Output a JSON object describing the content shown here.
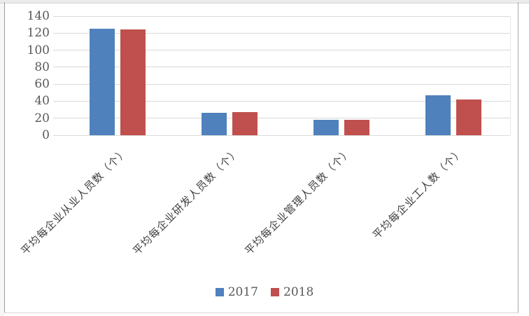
{
  "chart_data": {
    "type": "bar",
    "title": "",
    "categories": [
      "平均每企业从业人员数（个）",
      "平均每企业研发人员数（个）",
      "平均每企业管理人员数（个）",
      "平均每企业工人数（个）"
    ],
    "series": [
      {
        "name": "2017",
        "color": "#4F81BD",
        "values": [
          125,
          26,
          18,
          47
        ]
      },
      {
        "name": "2018",
        "color": "#C0504D",
        "values": [
          124,
          27,
          18,
          42
        ]
      }
    ],
    "xlabel": "",
    "ylabel": "",
    "ylim": [
      0,
      140
    ],
    "yticks": [
      0,
      20,
      40,
      60,
      80,
      100,
      120,
      140
    ],
    "grid": true,
    "gridline_color": "#d9d9d9",
    "axis_text_color": "#595959",
    "category_text_color": "#404040",
    "legend_position": "bottom",
    "legend_labels": [
      "2017",
      "2018"
    ]
  }
}
